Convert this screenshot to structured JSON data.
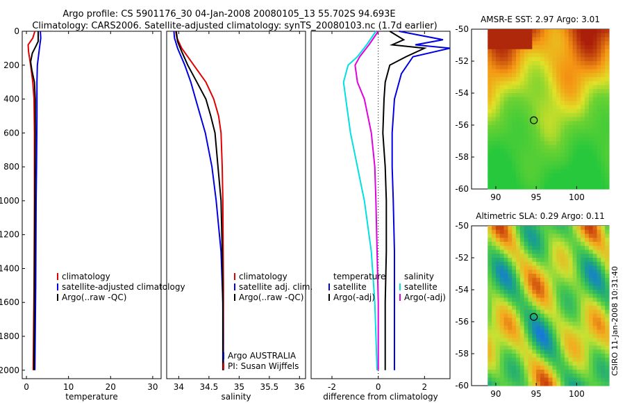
{
  "header": {
    "line1": "Argo profile: CS 5901176_30 04-Jan-2008 20080105_13 55.702S 94.693E",
    "line2": "Climatology: CARS2006. Satellite-adjusted climatology: synTS_20080103.nc (1.7d earlier)"
  },
  "side_label": "CSIRO 11-Jan-2008 10:31:40",
  "colors": {
    "red": "#e00000",
    "blue": "#0000e0",
    "black": "#000000",
    "cyan": "#00e0e0",
    "magenta": "#e000e0"
  },
  "chart_data": [
    {
      "id": "temperature",
      "type": "line",
      "xlabel": "temperature",
      "xlim": [
        -1,
        32
      ],
      "ylim": [
        2050,
        0
      ],
      "xticks": [
        0,
        10,
        20,
        30
      ],
      "yticks": [
        0,
        200,
        400,
        600,
        800,
        1000,
        1200,
        1400,
        1600,
        1800,
        2000
      ],
      "legend": {
        "placement": "bottom-right",
        "entries": [
          "climatology",
          "satellite-adjusted climatology",
          "Argo(..raw -QC)"
        ]
      },
      "series": [
        {
          "name": "climatology",
          "color": "red",
          "points": [
            [
              2.0,
              0
            ],
            [
              1.5,
              40
            ],
            [
              0.4,
              80
            ],
            [
              0.5,
              120
            ],
            [
              1.0,
              200
            ],
            [
              1.5,
              300
            ],
            [
              1.8,
              400
            ],
            [
              1.9,
              600
            ],
            [
              1.9,
              1000
            ],
            [
              1.8,
              1500
            ],
            [
              1.6,
              2000
            ]
          ]
        },
        {
          "name": "satellite-adjusted climatology",
          "color": "blue",
          "points": [
            [
              3.3,
              0
            ],
            [
              3.4,
              40
            ],
            [
              3.1,
              100
            ],
            [
              2.6,
              200
            ],
            [
              2.5,
              300
            ],
            [
              2.5,
              500
            ],
            [
              2.4,
              800
            ],
            [
              2.3,
              1000
            ],
            [
              2.2,
              1500
            ],
            [
              2.0,
              2000
            ]
          ]
        },
        {
          "name": "Argo(..raw -QC)",
          "color": "black",
          "points": [
            [
              2.8,
              0
            ],
            [
              2.8,
              60
            ],
            [
              2.2,
              90
            ],
            [
              1.4,
              130
            ],
            [
              1.0,
              180
            ],
            [
              1.3,
              230
            ],
            [
              1.9,
              300
            ],
            [
              2.1,
              400
            ],
            [
              2.1,
              600
            ],
            [
              2.0,
              1000
            ],
            [
              1.9,
              1500
            ],
            [
              1.8,
              2000
            ]
          ]
        }
      ]
    },
    {
      "id": "salinity",
      "type": "line",
      "xlabel": "salinity",
      "xlim": [
        33.8,
        36.1
      ],
      "ylim": [
        2050,
        0
      ],
      "xticks": [
        34,
        34.5,
        35,
        35.5,
        36
      ],
      "yticks": [],
      "legend": {
        "placement": "bottom-right",
        "entries": [
          "climatology",
          "satellite adj. clim.",
          "Argo(..raw -QC)"
        ]
      },
      "annotation": [
        "Argo AUSTRALIA",
        "PI: Susan Wijffels"
      ],
      "series": [
        {
          "name": "climatology",
          "color": "red",
          "points": [
            [
              33.95,
              0
            ],
            [
              33.97,
              40
            ],
            [
              34.05,
              100
            ],
            [
              34.25,
              200
            ],
            [
              34.45,
              300
            ],
            [
              34.58,
              400
            ],
            [
              34.66,
              500
            ],
            [
              34.7,
              600
            ],
            [
              34.72,
              800
            ],
            [
              34.73,
              1000
            ],
            [
              34.74,
              1500
            ],
            [
              34.74,
              2000
            ]
          ]
        },
        {
          "name": "satellite adj. clim.",
          "color": "blue",
          "points": [
            [
              33.92,
              0
            ],
            [
              33.93,
              40
            ],
            [
              33.98,
              100
            ],
            [
              34.1,
              200
            ],
            [
              34.2,
              300
            ],
            [
              34.28,
              400
            ],
            [
              34.36,
              500
            ],
            [
              34.44,
              600
            ],
            [
              34.55,
              800
            ],
            [
              34.62,
              1000
            ],
            [
              34.7,
              1300
            ],
            [
              34.73,
              1600
            ],
            [
              34.74,
              2000
            ]
          ]
        },
        {
          "name": "Argo(..raw -QC)",
          "color": "black",
          "points": [
            [
              33.96,
              0
            ],
            [
              33.98,
              60
            ],
            [
              34.05,
              120
            ],
            [
              34.15,
              200
            ],
            [
              34.3,
              300
            ],
            [
              34.45,
              400
            ],
            [
              34.53,
              500
            ],
            [
              34.6,
              600
            ],
            [
              34.65,
              800
            ],
            [
              34.7,
              1000
            ],
            [
              34.72,
              1300
            ],
            [
              34.73,
              1600
            ],
            [
              34.73,
              2000
            ]
          ]
        }
      ]
    },
    {
      "id": "difference",
      "type": "line",
      "xlabel": "difference from climatology",
      "xlim": [
        -2.9,
        3.1
      ],
      "ylim": [
        2050,
        0
      ],
      "xticks": [
        -2,
        0,
        2
      ],
      "yticks": [],
      "legend": {
        "placement": "bottom",
        "left": {
          "title": "temperature",
          "entries": [
            "satellite",
            "Argo(-adj)"
          ]
        },
        "right": {
          "title": "salinity",
          "entries": [
            "satellite",
            "Argo(-adj)"
          ]
        }
      },
      "series": [
        {
          "name": "temperature satellite",
          "color": "blue",
          "points": [
            [
              0.9,
              0
            ],
            [
              2.8,
              50
            ],
            [
              1.6,
              80
            ],
            [
              3.1,
              100
            ],
            [
              1.5,
              150
            ],
            [
              1.0,
              250
            ],
            [
              0.7,
              400
            ],
            [
              0.6,
              600
            ],
            [
              0.6,
              800
            ],
            [
              0.65,
              1000
            ],
            [
              0.7,
              1300
            ],
            [
              0.7,
              1600
            ],
            [
              0.7,
              2000
            ]
          ]
        },
        {
          "name": "temperature Argo(-adj)",
          "color": "black",
          "points": [
            [
              0.5,
              0
            ],
            [
              1.1,
              50
            ],
            [
              0.6,
              80
            ],
            [
              2.0,
              100
            ],
            [
              1.2,
              150
            ],
            [
              0.5,
              200
            ],
            [
              0.3,
              300
            ],
            [
              0.25,
              400
            ],
            [
              0.2,
              600
            ],
            [
              0.3,
              800
            ],
            [
              0.35,
              1000
            ],
            [
              0.35,
              1300
            ],
            [
              0.3,
              1600
            ],
            [
              0.3,
              2000
            ]
          ]
        },
        {
          "name": "salinity satellite",
          "color": "cyan",
          "points": [
            [
              -0.1,
              0
            ],
            [
              -0.5,
              80
            ],
            [
              -0.9,
              150
            ],
            [
              -1.3,
              200
            ],
            [
              -1.5,
              300
            ],
            [
              -1.4,
              400
            ],
            [
              -1.2,
              600
            ],
            [
              -0.9,
              800
            ],
            [
              -0.6,
              1000
            ],
            [
              -0.3,
              1300
            ],
            [
              -0.15,
              1600
            ],
            [
              -0.05,
              2000
            ]
          ]
        },
        {
          "name": "salinity Argo(-adj)",
          "color": "magenta",
          "points": [
            [
              0.0,
              0
            ],
            [
              -0.4,
              80
            ],
            [
              -0.8,
              150
            ],
            [
              -1.0,
              200
            ],
            [
              -0.9,
              300
            ],
            [
              -0.6,
              400
            ],
            [
              -0.3,
              600
            ],
            [
              -0.15,
              800
            ],
            [
              -0.1,
              1000
            ],
            [
              -0.05,
              1300
            ],
            [
              0.0,
              1600
            ],
            [
              0.0,
              2000
            ]
          ]
        }
      ]
    },
    {
      "id": "sst_map",
      "type": "heatmap",
      "title": "AMSR-E SST: 2.97 Argo: 3.01",
      "xlim": [
        87,
        104
      ],
      "ylim": [
        -60,
        -50
      ],
      "xticks": [
        90,
        95,
        100
      ],
      "yticks": [
        -50,
        -52,
        -54,
        -56,
        -58,
        -60
      ],
      "marker": [
        94.7,
        -55.7
      ],
      "colormap": "green-yellow-red"
    },
    {
      "id": "sla_map",
      "type": "heatmap",
      "title": "Altimetric SLA: 0.29 Argo: 0.11",
      "xlim": [
        87,
        104
      ],
      "ylim": [
        -60,
        -50
      ],
      "xticks": [
        90,
        95,
        100
      ],
      "yticks": [
        -50,
        -52,
        -54,
        -56,
        -58,
        -60
      ],
      "marker": [
        94.7,
        -55.7
      ],
      "colormap": "blue-green-yellow-red"
    }
  ]
}
